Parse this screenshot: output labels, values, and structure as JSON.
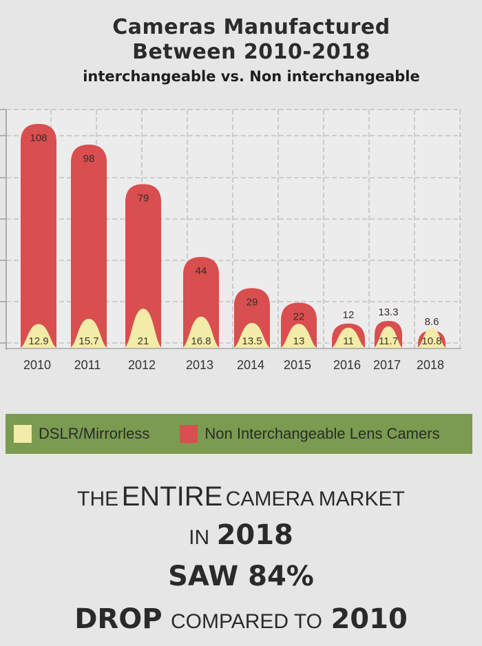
{
  "title": {
    "line1": "Cameras Manufactured",
    "line2": "Between 2010-2018",
    "subtitle": "interchangeable vs. Non interchangeable"
  },
  "colors": {
    "background": "#e6e6e6",
    "non_interchangeable": "#d94e4e",
    "dslr_mirrorless": "#f3eba8",
    "legend_bg": "#7a9b50",
    "grid": "#b9b9b9"
  },
  "chart_data": {
    "type": "bar",
    "stacked": "overlapping",
    "categories": [
      "2010",
      "2011",
      "2012",
      "2013",
      "2014",
      "2015",
      "2016",
      "2017",
      "2018"
    ],
    "series": [
      {
        "name": "DSLR/Mirrorless",
        "values": [
          12.9,
          15.7,
          21,
          16.8,
          13.5,
          13,
          11,
          11.7,
          10.8
        ]
      },
      {
        "name": "Non Interchangeable Lens Camers",
        "values": [
          108,
          98,
          79,
          44,
          29,
          22,
          12,
          13.3,
          8.6
        ]
      }
    ],
    "ylim": [
      0,
      120
    ],
    "grid": true,
    "legend": "bottom"
  },
  "legend": {
    "items": [
      {
        "label": "DSLR/Mirrorless",
        "color": "#f3eba8"
      },
      {
        "label": "Non Interchangeable Lens Camers",
        "color": "#d94e4e"
      }
    ]
  },
  "headline": {
    "line1_a": "THE",
    "line1_b": "ENTIRE",
    "line1_c": "CAMERA MARKET",
    "line2_a": "IN",
    "line2_b": "2018",
    "line3": "SAW 84%",
    "line4_a": "DROP",
    "line4_b": "COMPARED TO",
    "line4_c": "2010"
  }
}
